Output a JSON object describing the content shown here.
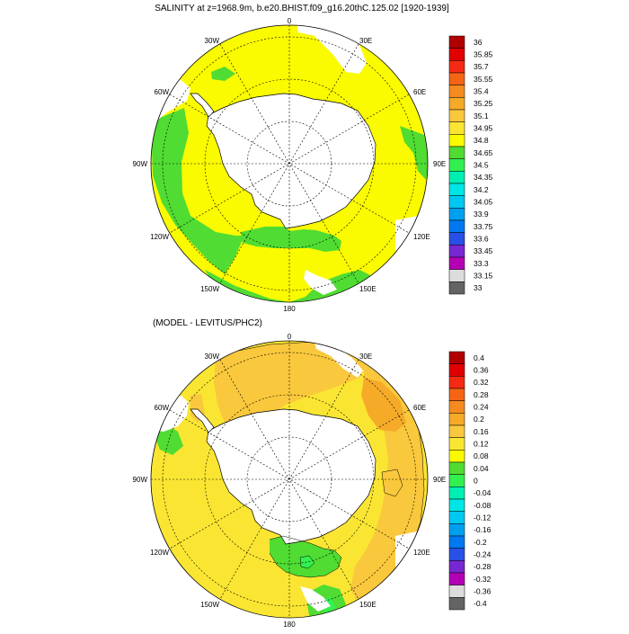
{
  "panel1": {
    "title": "SALINITY at z=1968.9m, b.e20.BHIST.f09_g16.20thC.125.02 [1920-1939]",
    "lon_labels": {
      "0": "0",
      "30E": "30E",
      "60E": "60E",
      "90E": "90E",
      "120E": "120E",
      "150E": "150E",
      "180": "180",
      "150W": "150W",
      "120W": "120W",
      "90W": "90W",
      "60W": "60W",
      "30W": "30W"
    },
    "colorbar": {
      "levels": [
        "36",
        "35.85",
        "35.7",
        "35.55",
        "35.4",
        "35.25",
        "35.1",
        "34.95",
        "34.8",
        "34.65",
        "34.5",
        "34.35",
        "34.2",
        "34.05",
        "33.9",
        "33.75",
        "33.6",
        "33.45",
        "33.3",
        "33.15",
        "33"
      ],
      "colors": [
        "#b00000",
        "#e00000",
        "#f52a14",
        "#f56414",
        "#f58a1e",
        "#f5aa28",
        "#fac83c",
        "#fae632",
        "#fafa00",
        "#50dc32",
        "#32f050",
        "#00f0b4",
        "#00e6e6",
        "#00c8f0",
        "#00a0f0",
        "#0078f0",
        "#2850e6",
        "#7828d2",
        "#b400b4",
        "#dcdcdc",
        "#646464"
      ]
    }
  },
  "panel2": {
    "title": "(MODEL - LEVITUS/PHC2)",
    "lon_labels": {
      "0": "0",
      "30E": "30E",
      "60E": "60E",
      "90E": "90E",
      "120E": "120E",
      "150E": "150E",
      "180": "180",
      "150W": "150W",
      "120W": "120W",
      "90W": "90W",
      "60W": "60W",
      "30W": "30W"
    },
    "colorbar": {
      "levels": [
        "0.4",
        "0.36",
        "0.32",
        "0.28",
        "0.24",
        "0.2",
        "0.16",
        "0.12",
        "0.08",
        "0.04",
        "0",
        "-0.04",
        "-0.08",
        "-0.12",
        "-0.16",
        "-0.2",
        "-0.24",
        "-0.28",
        "-0.32",
        "-0.36",
        "-0.4"
      ],
      "colors": [
        "#b00000",
        "#e00000",
        "#f52a14",
        "#f56414",
        "#f58a1e",
        "#f5aa28",
        "#fac83c",
        "#fae632",
        "#fafa00",
        "#50dc32",
        "#32f050",
        "#00f0b4",
        "#00e6e6",
        "#00c8f0",
        "#00a0f0",
        "#0078f0",
        "#2850e6",
        "#7828d2",
        "#b400b4",
        "#dcdcdc",
        "#646464"
      ]
    }
  },
  "colors": {
    "panel1_fill": "#fafa00",
    "panel1_green": "#50dc32",
    "panel2_fill": "#fae632",
    "panel2_orange": "#fac83c",
    "panel2_green": "#50dc32",
    "panel2_light_green": "#32f050",
    "land": "#ffffff"
  }
}
